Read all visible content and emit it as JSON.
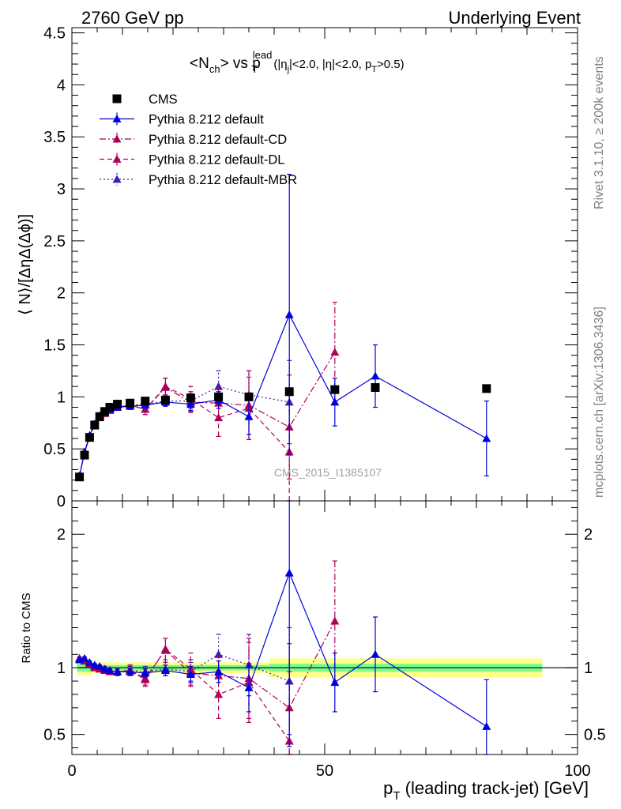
{
  "header": {
    "left": "2760 GeV pp",
    "right": "Underlying Event"
  },
  "side_labels": {
    "rivet": "Rivet 3.1.10, ≥ 200k events",
    "mcplots": "mcplots.cern.ch [arXiv:1306.3436]"
  },
  "watermark": "CMS_2015_I1385107",
  "colors": {
    "data": "#000000",
    "default": "#0000dd",
    "cd": "#b0005a",
    "dl": "#b0005a",
    "mbr": "#3a1eb0",
    "band_inner": "#7cfc8c",
    "band_outer": "#ffff8c"
  },
  "chart_data": {
    "type": "scatter",
    "title_main": "<N",
    "title_sub1": "ch",
    "title_mid": "> vs p",
    "title_sup": "lead",
    "title_sub2": "T",
    "title_cuts_a": "(|η",
    "title_cuts_a_sub": "j",
    "title_cuts_b": "|<2.0, |η|<2.0, p",
    "title_cuts_b_sub": "T",
    "title_cuts_c": ">0.5)",
    "ylabel": "⟨ N⟩/[ΔηΔ(Δϕ)]",
    "ratio_ylabel": "Ratio to CMS",
    "xlabel_main": "p",
    "xlabel_sub": "T",
    "xlabel_rest": " (leading track-jet) [GeV]",
    "xlim": [
      0,
      100
    ],
    "ylim": [
      0,
      4.55
    ],
    "ratio_ylim": [
      0.35,
      2.25
    ],
    "x_ticks": [
      "0",
      "50",
      "100"
    ],
    "y_ticks": [
      "0",
      "0.5",
      "1",
      "1.5",
      "2",
      "2.5",
      "3",
      "3.5",
      "4",
      "4.5"
    ],
    "ratio_y_ticks": [
      "0.5",
      "1",
      "2"
    ],
    "legend": [
      "CMS",
      "Pythia 8.212 default",
      "Pythia 8.212 default-CD",
      "Pythia 8.212 default-DL",
      "Pythia 8.212 default-MBR"
    ],
    "data": {
      "name": "CMS",
      "x": [
        1.5,
        2.5,
        3.5,
        4.5,
        5.5,
        6.5,
        7.5,
        9.0,
        11.5,
        14.5,
        18.5,
        23.5,
        29.0,
        35.0,
        43.0,
        52.0,
        60.0,
        82.0
      ],
      "y": [
        0.23,
        0.44,
        0.61,
        0.73,
        0.81,
        0.86,
        0.9,
        0.93,
        0.94,
        0.96,
        0.97,
        0.99,
        1.0,
        1.0,
        1.05,
        1.07,
        1.09,
        1.08
      ],
      "band_inner": 0.02,
      "band_outer": 0.04
    },
    "series": [
      {
        "name": "Pythia 8.212 default",
        "style": "solid",
        "x": [
          1.5,
          2.5,
          3.5,
          4.5,
          5.5,
          6.5,
          7.5,
          9.0,
          11.5,
          14.5,
          18.5,
          23.5,
          29.0,
          35.0,
          43.0,
          52.0,
          60.0,
          82.0
        ],
        "y": [
          0.24,
          0.47,
          0.63,
          0.74,
          0.82,
          0.85,
          0.88,
          0.9,
          0.91,
          0.92,
          0.95,
          0.93,
          0.97,
          0.81,
          1.79,
          0.95,
          1.2,
          0.6
        ],
        "err": [
          0.01,
          0.01,
          0.01,
          0.01,
          0.01,
          0.01,
          0.01,
          0.02,
          0.02,
          0.03,
          0.04,
          0.06,
          0.08,
          0.17,
          1.35,
          0.23,
          0.3,
          0.36
        ],
        "ratio": [
          1.06,
          1.07,
          1.04,
          1.02,
          1.01,
          0.99,
          0.98,
          0.97,
          0.97,
          0.96,
          0.98,
          0.95,
          0.97,
          0.85,
          1.71,
          0.89,
          1.1,
          0.56
        ],
        "ratio_err": [
          0.01,
          0.01,
          0.01,
          0.01,
          0.01,
          0.01,
          0.01,
          0.02,
          0.02,
          0.03,
          0.04,
          0.06,
          0.08,
          0.18,
          1.3,
          0.22,
          0.28,
          0.35
        ]
      },
      {
        "name": "Pythia 8.212 default-CD",
        "style": "dashdot",
        "x": [
          1.5,
          2.5,
          3.5,
          4.5,
          5.5,
          6.5,
          7.5,
          9.0,
          11.5,
          14.5,
          18.5,
          23.5,
          29.0,
          35.0,
          43.0,
          52.0
        ],
        "y": [
          0.24,
          0.46,
          0.62,
          0.72,
          0.8,
          0.85,
          0.88,
          0.9,
          0.92,
          0.88,
          1.09,
          0.95,
          0.94,
          0.92,
          0.71,
          1.43
        ],
        "err": [
          0.01,
          0.01,
          0.01,
          0.01,
          0.02,
          0.02,
          0.02,
          0.03,
          0.04,
          0.05,
          0.09,
          0.1,
          0.15,
          0.33,
          0.5,
          0.48
        ],
        "ratio": [
          1.07,
          1.06,
          1.03,
          1.0,
          0.99,
          0.98,
          0.98,
          0.97,
          0.98,
          0.92,
          1.13,
          0.96,
          0.94,
          0.92,
          0.7,
          1.35
        ],
        "ratio_err": [
          0.01,
          0.01,
          0.01,
          0.01,
          0.02,
          0.02,
          0.02,
          0.03,
          0.04,
          0.05,
          0.09,
          0.1,
          0.15,
          0.3,
          0.48,
          0.45
        ]
      },
      {
        "name": "Pythia 8.212 default-DL",
        "style": "dashed",
        "x": [
          1.5,
          2.5,
          3.5,
          4.5,
          5.5,
          6.5,
          7.5,
          9.0,
          11.5,
          14.5,
          18.5,
          23.5,
          29.0,
          35.0,
          43.0
        ],
        "y": [
          0.24,
          0.46,
          0.62,
          0.73,
          0.81,
          0.84,
          0.87,
          0.9,
          0.92,
          0.88,
          1.1,
          0.98,
          0.8,
          0.89,
          0.47
        ],
        "err": [
          0.01,
          0.01,
          0.01,
          0.01,
          0.02,
          0.02,
          0.02,
          0.03,
          0.04,
          0.05,
          0.08,
          0.12,
          0.18,
          0.3,
          0.55
        ],
        "ratio": [
          1.07,
          1.05,
          1.03,
          1.01,
          1.0,
          0.98,
          0.97,
          0.97,
          0.98,
          0.91,
          1.14,
          0.99,
          0.8,
          0.89,
          0.45
        ],
        "ratio_err": [
          0.01,
          0.01,
          0.01,
          0.01,
          0.02,
          0.02,
          0.02,
          0.03,
          0.04,
          0.05,
          0.08,
          0.12,
          0.18,
          0.3,
          0.52
        ]
      },
      {
        "name": "Pythia 8.212 default-MBR",
        "style": "dotted",
        "x": [
          1.5,
          2.5,
          3.5,
          4.5,
          5.5,
          6.5,
          7.5,
          9.0,
          11.5,
          14.5,
          18.5,
          23.5,
          29.0,
          35.0,
          43.0
        ],
        "y": [
          0.24,
          0.46,
          0.62,
          0.73,
          0.81,
          0.86,
          0.88,
          0.9,
          0.92,
          0.93,
          0.96,
          0.96,
          1.1,
          1.02,
          0.95
        ],
        "err": [
          0.01,
          0.01,
          0.01,
          0.01,
          0.01,
          0.02,
          0.02,
          0.02,
          0.03,
          0.04,
          0.05,
          0.07,
          0.15,
          0.23,
          0.4
        ],
        "ratio": [
          1.07,
          1.05,
          1.03,
          1.01,
          1.0,
          0.99,
          0.98,
          0.97,
          0.98,
          0.97,
          0.99,
          0.97,
          1.1,
          1.02,
          0.9
        ],
        "ratio_err": [
          0.01,
          0.01,
          0.01,
          0.01,
          0.01,
          0.02,
          0.02,
          0.02,
          0.03,
          0.04,
          0.05,
          0.07,
          0.15,
          0.23,
          0.4
        ]
      }
    ]
  }
}
